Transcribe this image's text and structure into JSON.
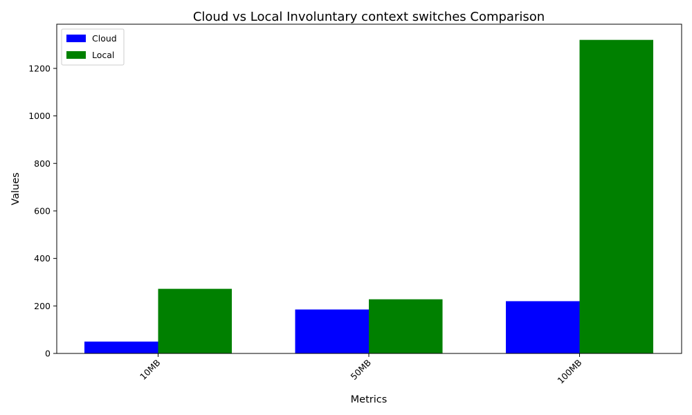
{
  "chart_data": {
    "type": "bar",
    "title": "Cloud vs Local Involuntary context switches Comparison",
    "xlabel": "Metrics",
    "ylabel": "Values",
    "categories": [
      "10MB",
      "50MB",
      "100MB"
    ],
    "series": [
      {
        "name": "Cloud",
        "color": "#0000ff",
        "values": [
          50,
          185,
          220
        ]
      },
      {
        "name": "Local",
        "color": "#008000",
        "values": [
          272,
          228,
          1320
        ]
      }
    ],
    "ylim": [
      0,
      1386
    ],
    "yticks": [
      0,
      200,
      400,
      600,
      800,
      1000,
      1200
    ],
    "grid": false,
    "legend_position": "top-left"
  }
}
